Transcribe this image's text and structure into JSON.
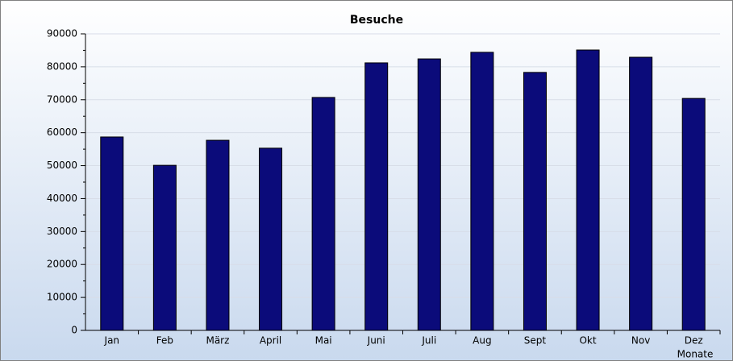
{
  "chart_data": {
    "type": "bar",
    "title": "Besuche",
    "x_label": "Monate",
    "categories": [
      "Jan",
      "Feb",
      "März",
      "April",
      "Mai",
      "Juni",
      "Juli",
      "Aug",
      "Sept",
      "Okt",
      "Nov",
      "Dez"
    ],
    "values": [
      58700,
      50100,
      57700,
      55300,
      70700,
      81200,
      82400,
      84400,
      78300,
      85100,
      82900,
      70400
    ],
    "color": "#0b0b7a",
    "ylim": [
      0,
      90000
    ],
    "yticks": [
      0,
      10000,
      20000,
      30000,
      40000,
      50000,
      60000,
      70000,
      80000,
      90000
    ],
    "grid": true
  }
}
